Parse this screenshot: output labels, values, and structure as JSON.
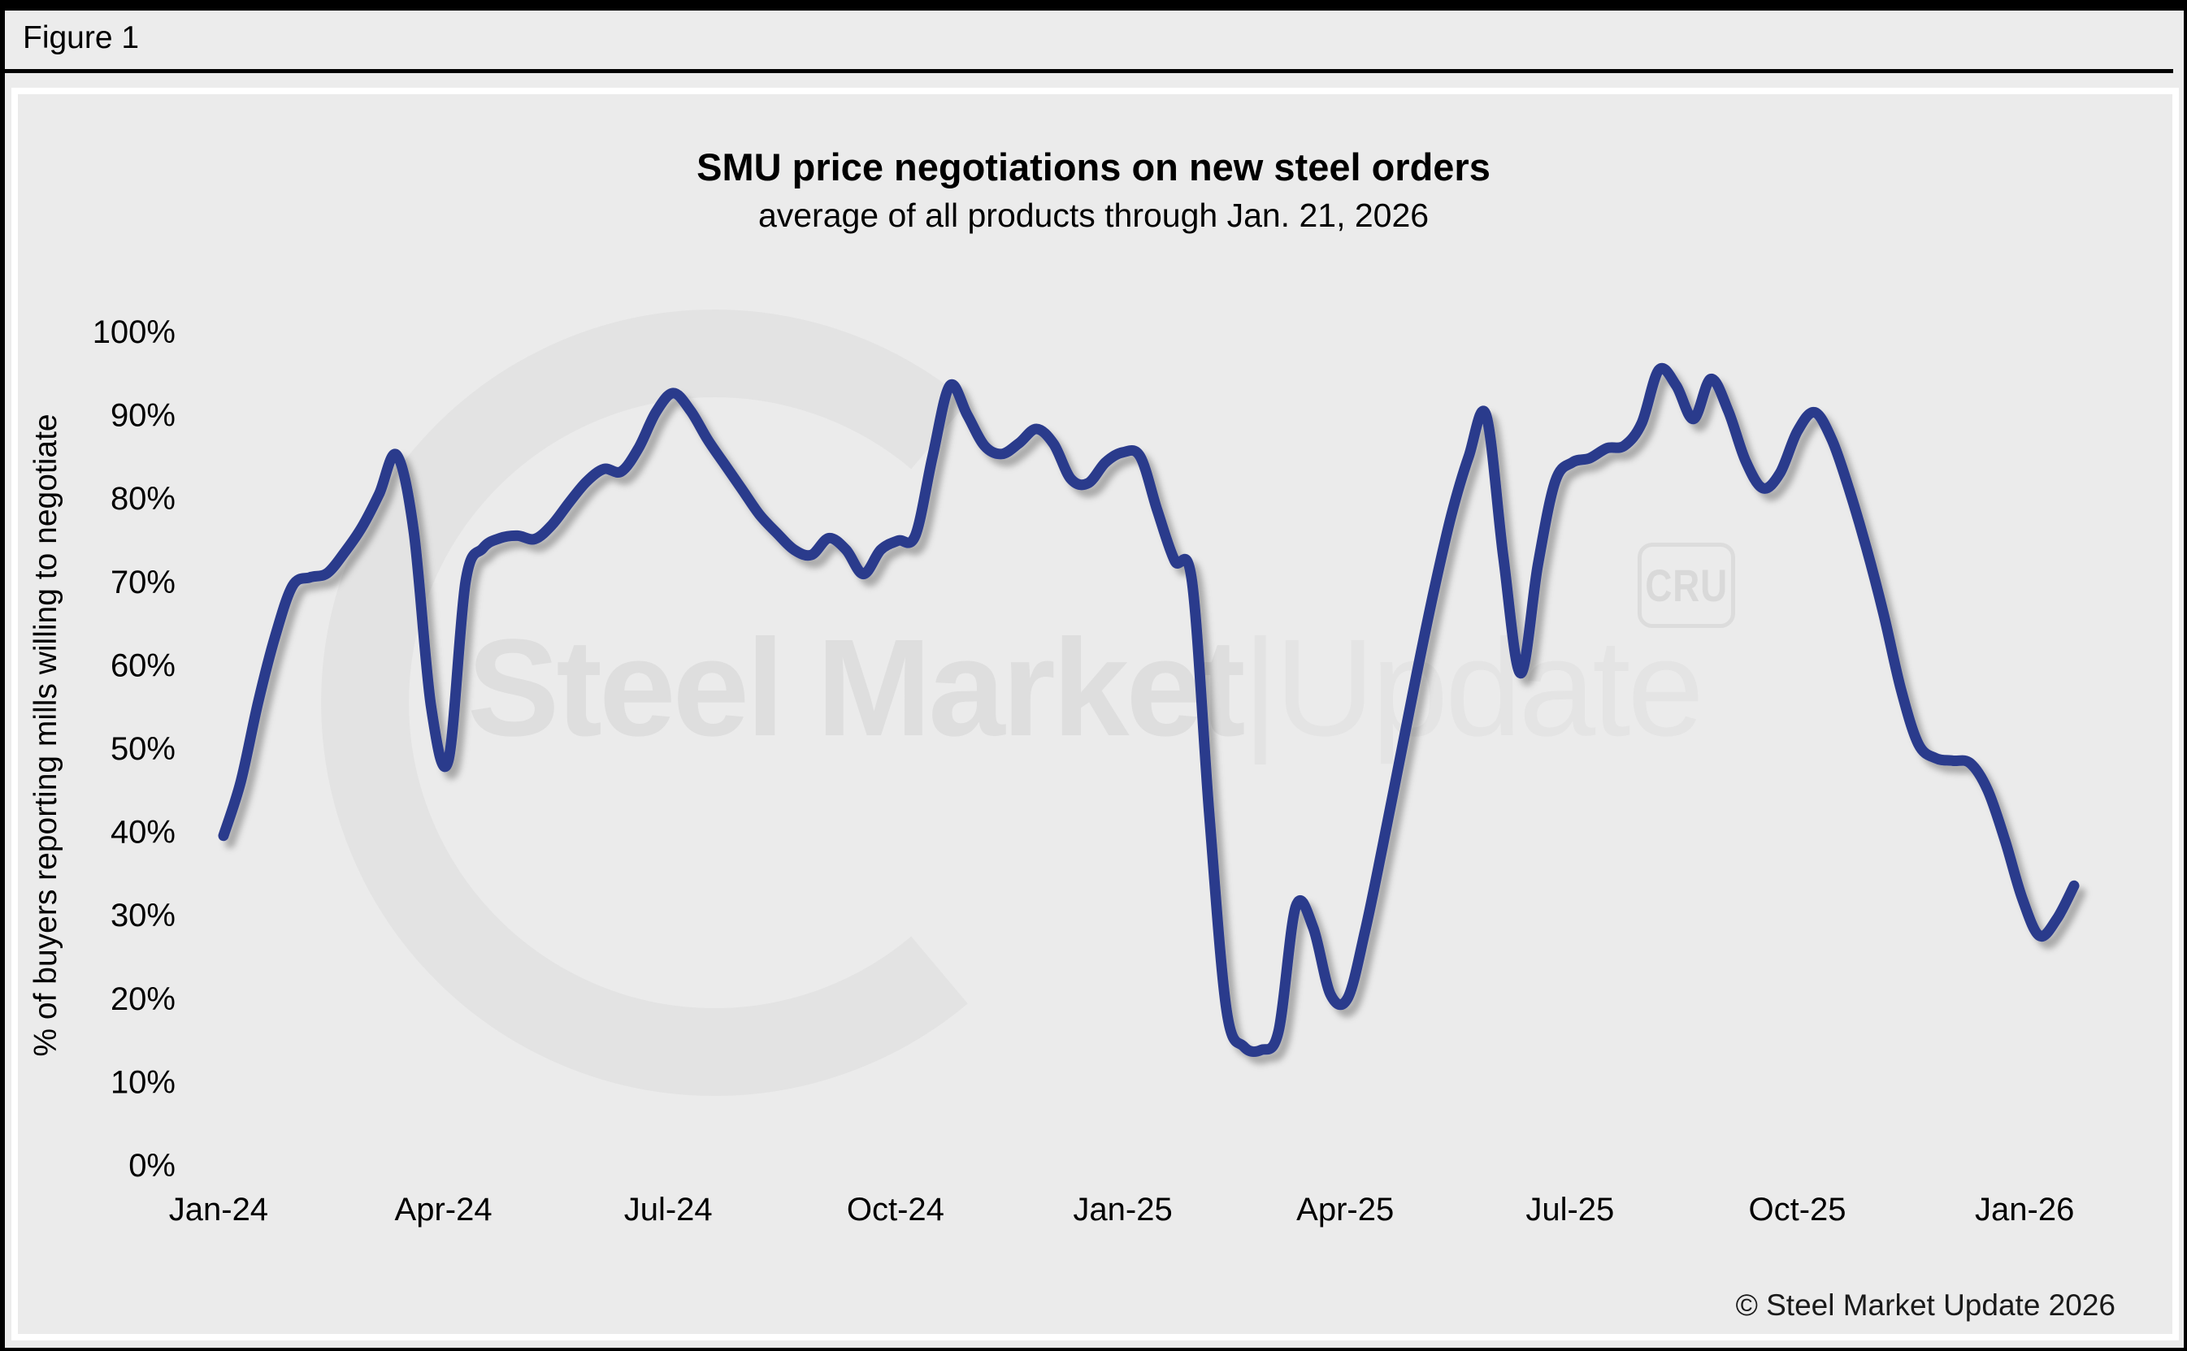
{
  "figure_label": "Figure 1",
  "chart": {
    "title": "SMU price negotiations on new steel orders",
    "subtitle": "average of all products through Jan. 21, 2026",
    "y_axis_title": "% of buyers reporting mills willing to negotiate",
    "copyright": "© Steel Market Update 2026"
  },
  "watermark": {
    "bold_text": "Steel Market",
    "separator": "|",
    "light_text": "Update",
    "badge": "CRU"
  },
  "colors": {
    "line": "#2b3a8c",
    "page_background": "#ececec",
    "panel_background": "#ebebeb",
    "watermark_gray": "#e3e3e3",
    "text": "#000000"
  },
  "chart_data": {
    "type": "line",
    "title": "SMU price negotiations on new steel orders",
    "subtitle": "average of all products through Jan. 21, 2026",
    "ylabel": "% of buyers reporting mills willing to negotiate",
    "xlabel": "",
    "ylim": [
      0,
      100
    ],
    "grid": false,
    "legend": "none",
    "interval": "weekly",
    "start_date": "2024-01-03",
    "end_date": "2026-01-21",
    "series_name": "% of buyers reporting mills willing to negotiate",
    "values": [
      39.5,
      46,
      55.5,
      63.5,
      69.5,
      70.5,
      71,
      73.5,
      76.5,
      80.5,
      85.2,
      76,
      55,
      48.5,
      70,
      74,
      75.2,
      75.5,
      75.1,
      76.8,
      79.5,
      82,
      83.5,
      83.2,
      86,
      90.3,
      92.6,
      90.5,
      87,
      84,
      81,
      78,
      75.8,
      73.8,
      73.2,
      75.2,
      73.8,
      70.9,
      73.8,
      74.9,
      75.5,
      85,
      93.5,
      90,
      86.3,
      85.3,
      86.6,
      88.3,
      86.5,
      82.3,
      81.8,
      84.3,
      85.5,
      85,
      78.5,
      72.5,
      70,
      42,
      18.5,
      14.2,
      13.8,
      16,
      31,
      28.5,
      20.5,
      20,
      28,
      38,
      48.5,
      59,
      69,
      78,
      85,
      90,
      73,
      59,
      72,
      82,
      84.3,
      84.8,
      86,
      86.3,
      89,
      95.4,
      93.5,
      89.5,
      94.3,
      90.5,
      84.5,
      81.2,
      83,
      88,
      90.3,
      87,
      81,
      74,
      66,
      57,
      50.5,
      48.8,
      48.5,
      48.2,
      45,
      39,
      32,
      27.5,
      29.5,
      33.5
    ],
    "x_ticks": [
      {
        "label": "Jan-24",
        "date": "2024-01-01"
      },
      {
        "label": "Apr-24",
        "date": "2024-04-01"
      },
      {
        "label": "Jul-24",
        "date": "2024-07-01"
      },
      {
        "label": "Oct-24",
        "date": "2024-10-01"
      },
      {
        "label": "Jan-25",
        "date": "2025-01-01"
      },
      {
        "label": "Apr-25",
        "date": "2025-04-01"
      },
      {
        "label": "Jul-25",
        "date": "2025-07-01"
      },
      {
        "label": "Oct-25",
        "date": "2025-10-01"
      },
      {
        "label": "Jan-26",
        "date": "2026-01-01"
      }
    ],
    "y_ticks": [
      {
        "label": "0%",
        "value": 0
      },
      {
        "label": "10%",
        "value": 10
      },
      {
        "label": "20%",
        "value": 20
      },
      {
        "label": "30%",
        "value": 30
      },
      {
        "label": "40%",
        "value": 40
      },
      {
        "label": "50%",
        "value": 50
      },
      {
        "label": "60%",
        "value": 60
      },
      {
        "label": "70%",
        "value": 70
      },
      {
        "label": "80%",
        "value": 80
      },
      {
        "label": "90%",
        "value": 90
      },
      {
        "label": "100%",
        "value": 100
      }
    ]
  }
}
